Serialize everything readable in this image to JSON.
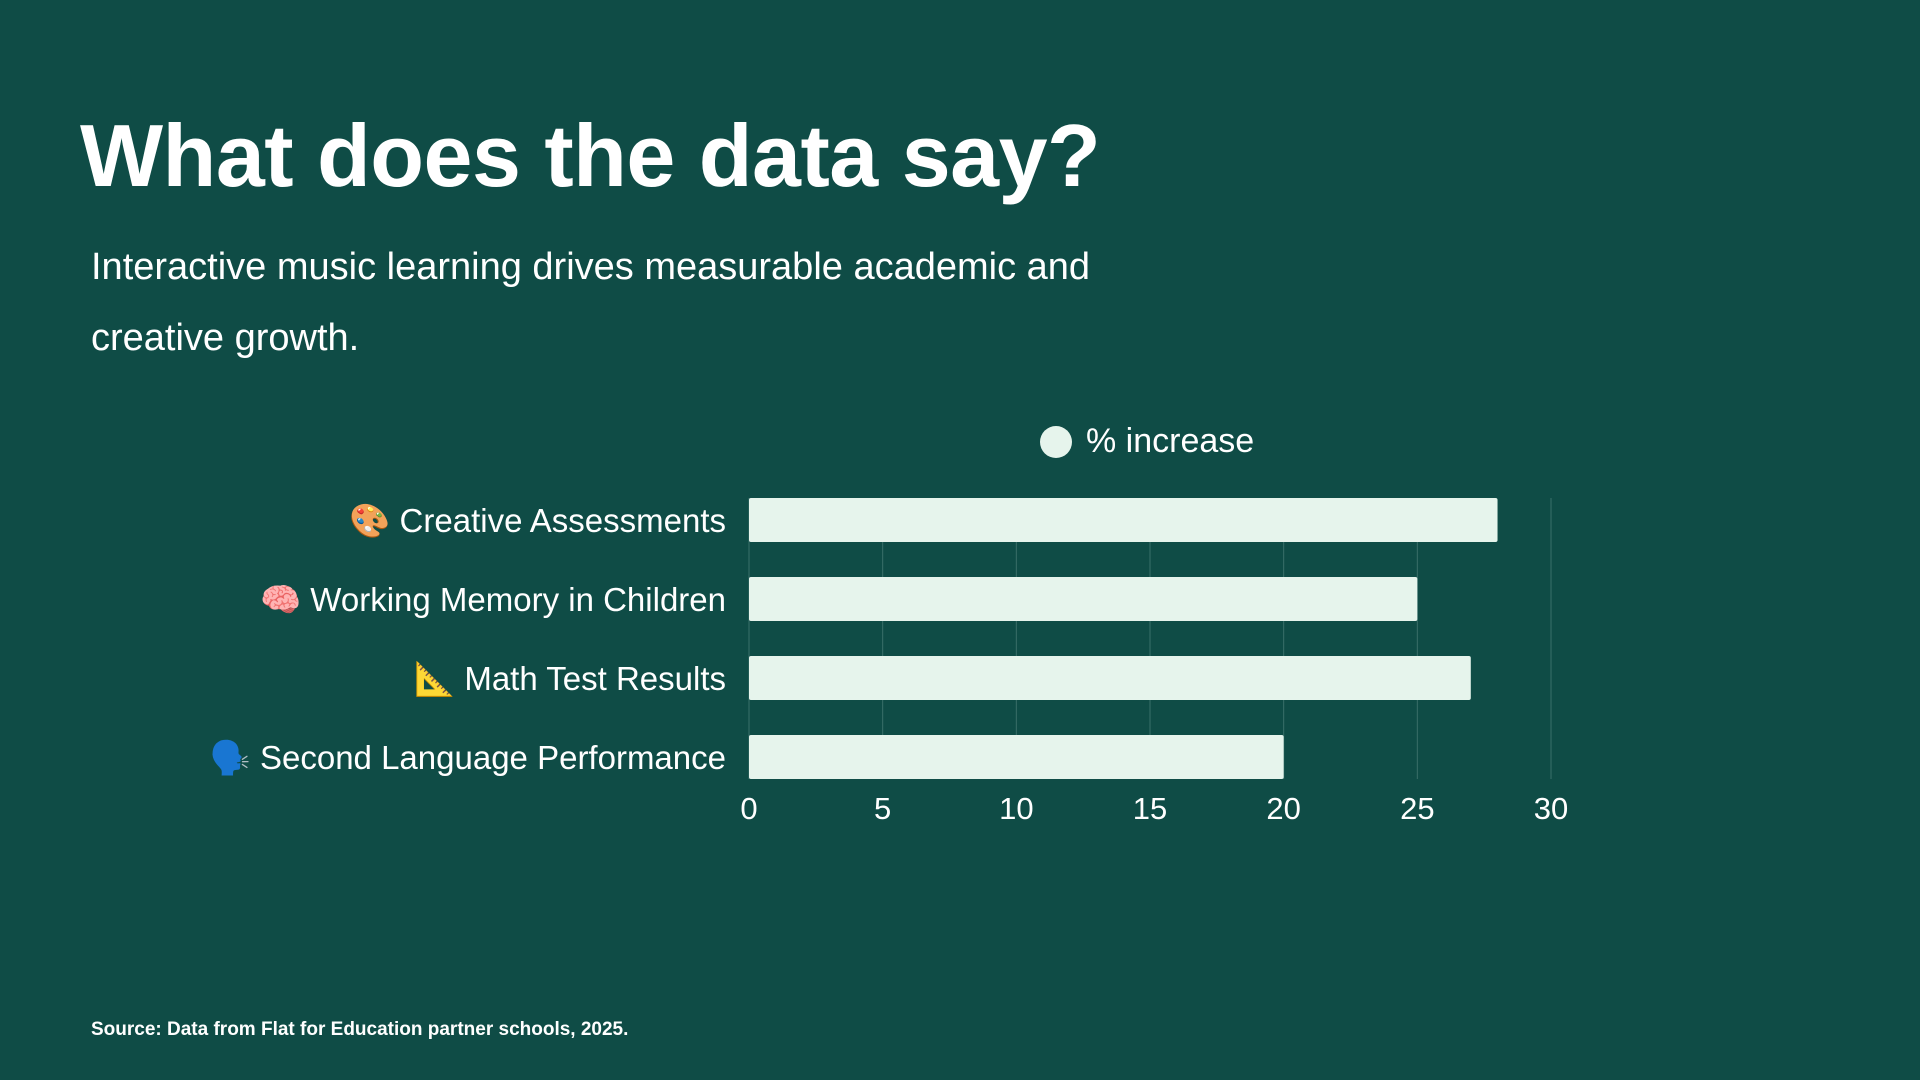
{
  "title": "What does the data say?",
  "subtitle": "Interactive music learning drives measurable academic and creative growth.",
  "source": "Source: Data from Flat for Education partner schools, 2025.",
  "chart_data": {
    "type": "bar",
    "orientation": "horizontal",
    "categories": [
      "🎨 Creative Assessments",
      "🧠 Working Memory in Children",
      "📐 Math Test Results",
      "🗣️ Second Language Performance"
    ],
    "series": [
      {
        "name": "% increase",
        "values": [
          28,
          25,
          27,
          20
        ],
        "color": "#e6f4ec"
      }
    ],
    "xlim": [
      0,
      30
    ],
    "xticks": [
      0,
      5,
      10,
      15,
      20,
      25,
      30
    ],
    "grid": true,
    "legend": "top-center",
    "background": "#0f4c46"
  }
}
